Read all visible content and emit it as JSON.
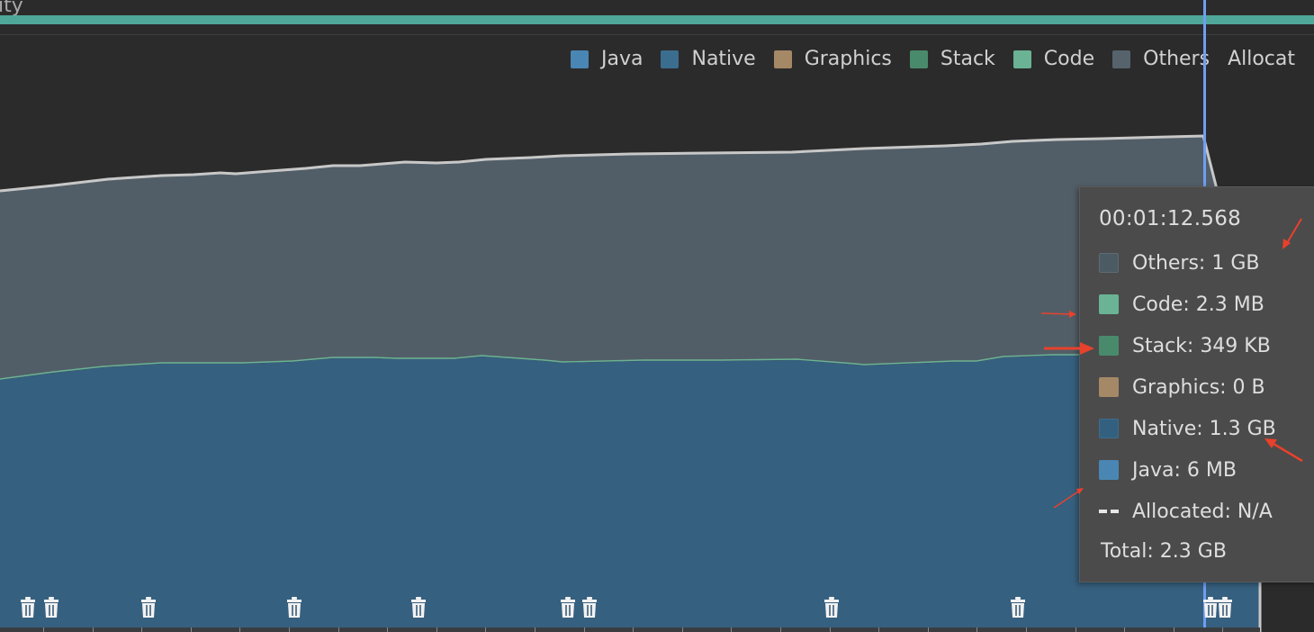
{
  "header": {
    "partial_title": "ity"
  },
  "legend": {
    "items": [
      {
        "label": "Java",
        "color": "#4a86b3"
      },
      {
        "label": "Native",
        "color": "#3b6d8f"
      },
      {
        "label": "Graphics",
        "color": "#a58866"
      },
      {
        "label": "Stack",
        "color": "#4a8a6c"
      },
      {
        "label": "Code",
        "color": "#6ab394"
      },
      {
        "label": "Others",
        "color": "#56636d"
      },
      {
        "label": "Allocat",
        "color": ""
      }
    ]
  },
  "tooltip": {
    "time": "00:01:12.568",
    "rows": [
      {
        "label": "Others: 1 GB",
        "color": "#4c5a64",
        "icon": "others-swatch"
      },
      {
        "label": "Code: 2.3 MB",
        "color": "#6ab394",
        "icon": "code-swatch"
      },
      {
        "label": "Stack: 349 KB",
        "color": "#4a8a6c",
        "icon": "stack-swatch"
      },
      {
        "label": "Graphics: 0 B",
        "color": "#a58866",
        "icon": "graphics-swatch"
      },
      {
        "label": "Native: 1.3 GB",
        "color": "#34607f",
        "icon": "native-swatch"
      },
      {
        "label": "Java: 6 MB",
        "color": "#4a86b3",
        "icon": "java-swatch"
      },
      {
        "label": "Allocated: N/A",
        "color": "#e8e8e8",
        "icon": "allocated-dash"
      }
    ],
    "total": "Total: 2.3 GB"
  },
  "colors": {
    "background": "#2b2b2b",
    "activity_bar": "#4fa79a",
    "native_area": "#36607f",
    "others_area": "#525e67",
    "total_line": "#c8c8c8",
    "cursor": "#6f9ef3",
    "annotation_arrow": "#e8412c"
  },
  "gc_events": {
    "icon": "trash-can-icon",
    "count": 12
  }
}
